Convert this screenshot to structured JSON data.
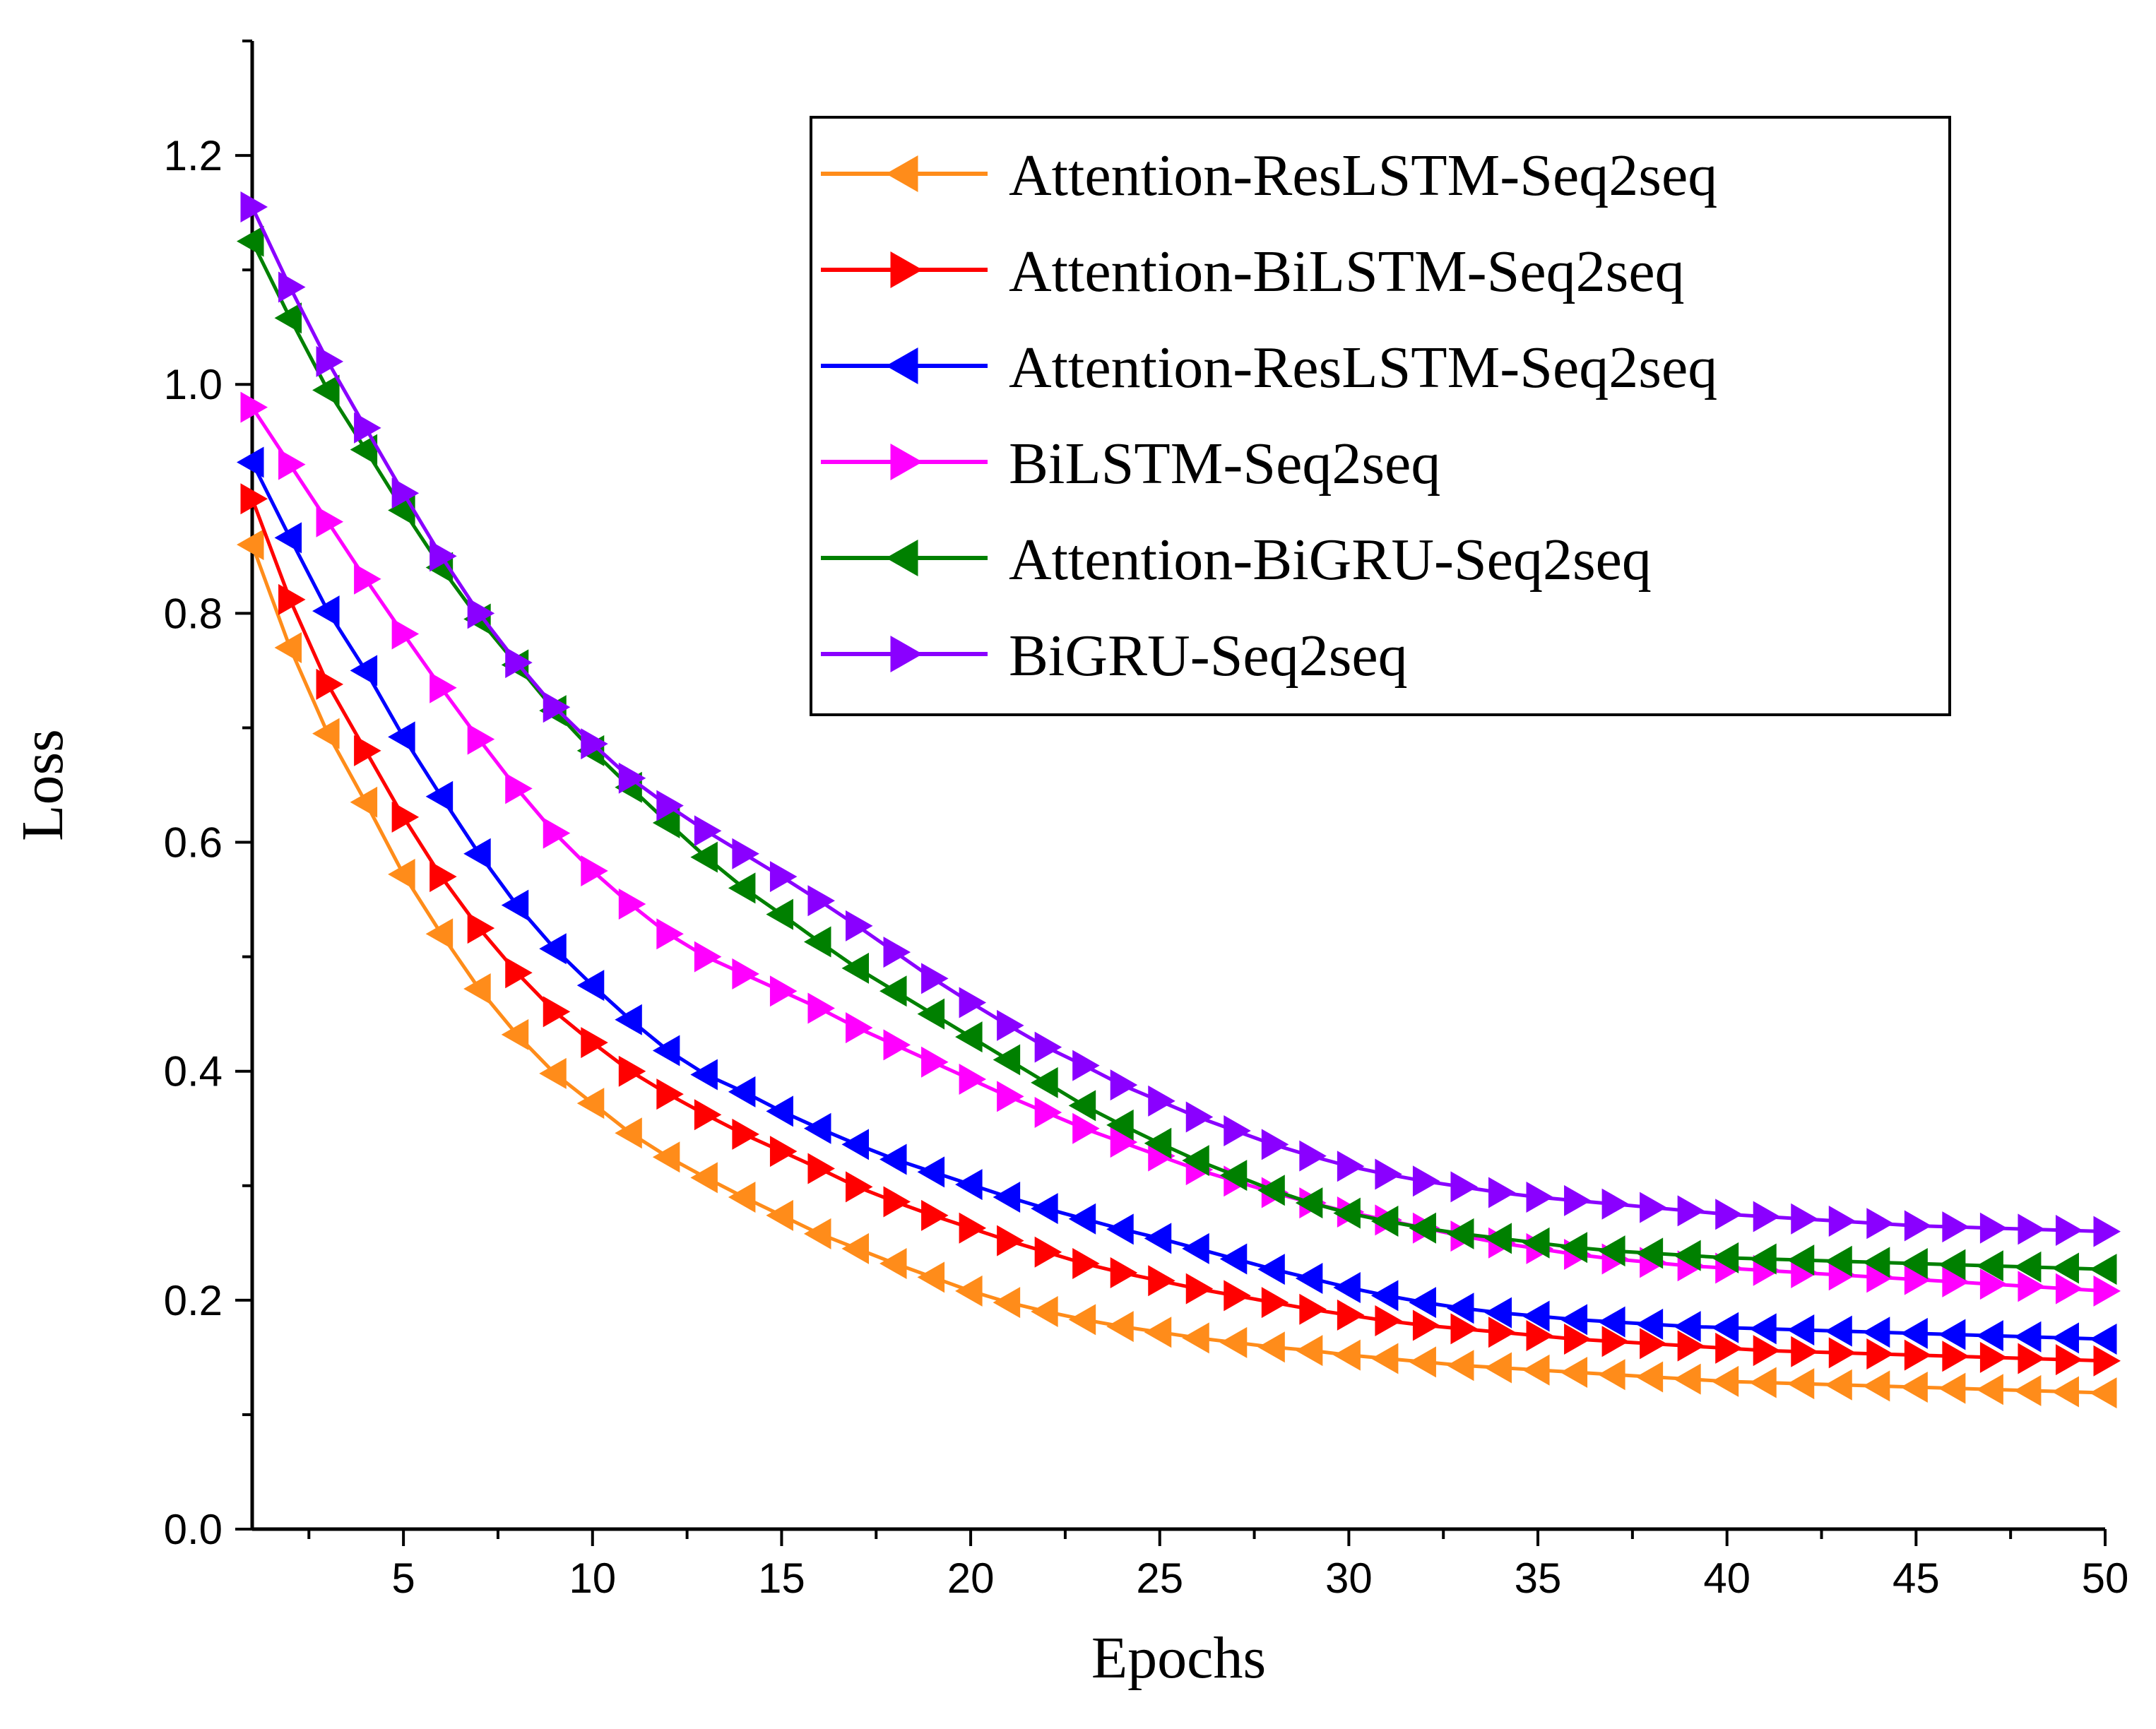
{
  "chart_data": {
    "type": "line",
    "title": "",
    "xlabel": "Epochs",
    "ylabel": "Loss",
    "xlim": [
      1,
      50
    ],
    "ylim": [
      0.0,
      1.3
    ],
    "xticks": [
      5,
      10,
      15,
      20,
      25,
      30,
      35,
      40,
      45,
      50
    ],
    "yticks": [
      0.0,
      0.2,
      0.4,
      0.6,
      0.8,
      1.0,
      1.2
    ],
    "grid": false,
    "legend_position": "top-right",
    "x": [
      1,
      2,
      3,
      4,
      5,
      6,
      7,
      8,
      9,
      10,
      11,
      12,
      13,
      14,
      15,
      16,
      17,
      18,
      19,
      20,
      21,
      22,
      23,
      24,
      25,
      26,
      27,
      28,
      29,
      30,
      31,
      32,
      33,
      34,
      35,
      36,
      37,
      38,
      39,
      40,
      41,
      42,
      43,
      44,
      45,
      46,
      47,
      48,
      49,
      50
    ],
    "series": [
      {
        "name": "Attention-ResLSTM-Seq2seq",
        "color": "#ff8c1a",
        "marker": "triangle-left",
        "values": [
          0.86,
          0.77,
          0.695,
          0.635,
          0.572,
          0.52,
          0.472,
          0.432,
          0.398,
          0.372,
          0.346,
          0.325,
          0.307,
          0.29,
          0.274,
          0.258,
          0.245,
          0.232,
          0.22,
          0.208,
          0.198,
          0.19,
          0.183,
          0.177,
          0.172,
          0.167,
          0.163,
          0.159,
          0.156,
          0.152,
          0.149,
          0.146,
          0.143,
          0.141,
          0.139,
          0.137,
          0.135,
          0.133,
          0.131,
          0.129,
          0.128,
          0.127,
          0.126,
          0.125,
          0.124,
          0.123,
          0.122,
          0.121,
          0.12,
          0.119
        ]
      },
      {
        "name": "Attention-BiLSTM-Seq2seq",
        "color": "#ff0000",
        "marker": "triangle-right",
        "values": [
          0.9,
          0.812,
          0.738,
          0.68,
          0.622,
          0.57,
          0.525,
          0.486,
          0.452,
          0.425,
          0.4,
          0.38,
          0.362,
          0.345,
          0.33,
          0.315,
          0.299,
          0.286,
          0.274,
          0.263,
          0.252,
          0.242,
          0.232,
          0.224,
          0.217,
          0.21,
          0.204,
          0.198,
          0.192,
          0.187,
          0.182,
          0.178,
          0.175,
          0.172,
          0.169,
          0.166,
          0.164,
          0.162,
          0.16,
          0.158,
          0.156,
          0.155,
          0.154,
          0.153,
          0.152,
          0.151,
          0.15,
          0.149,
          0.148,
          0.147
        ]
      },
      {
        "name": "Attention-ResLSTM-Seq2seq",
        "color": "#0000ff",
        "marker": "triangle-left",
        "values": [
          0.932,
          0.866,
          0.802,
          0.75,
          0.692,
          0.64,
          0.59,
          0.545,
          0.507,
          0.475,
          0.445,
          0.418,
          0.397,
          0.382,
          0.365,
          0.35,
          0.336,
          0.323,
          0.312,
          0.301,
          0.29,
          0.28,
          0.271,
          0.262,
          0.254,
          0.245,
          0.236,
          0.227,
          0.219,
          0.211,
          0.204,
          0.198,
          0.193,
          0.189,
          0.186,
          0.183,
          0.181,
          0.179,
          0.177,
          0.176,
          0.175,
          0.174,
          0.173,
          0.172,
          0.171,
          0.17,
          0.169,
          0.168,
          0.167,
          0.166
        ]
      },
      {
        "name": "BiLSTM-Seq2seq",
        "color": "#ff00ff",
        "marker": "triangle-right",
        "values": [
          0.98,
          0.93,
          0.88,
          0.83,
          0.782,
          0.735,
          0.69,
          0.647,
          0.608,
          0.575,
          0.546,
          0.52,
          0.5,
          0.485,
          0.47,
          0.455,
          0.438,
          0.423,
          0.408,
          0.393,
          0.378,
          0.364,
          0.35,
          0.338,
          0.326,
          0.314,
          0.304,
          0.294,
          0.285,
          0.277,
          0.27,
          0.263,
          0.256,
          0.25,
          0.245,
          0.24,
          0.236,
          0.233,
          0.23,
          0.228,
          0.226,
          0.224,
          0.222,
          0.22,
          0.218,
          0.216,
          0.214,
          0.212,
          0.21,
          0.208
        ]
      },
      {
        "name": "Attention-BiGRU-Seq2seq",
        "color": "#008000",
        "marker": "triangle-left",
        "values": [
          1.125,
          1.058,
          0.995,
          0.943,
          0.89,
          0.84,
          0.795,
          0.755,
          0.715,
          0.68,
          0.648,
          0.617,
          0.587,
          0.56,
          0.537,
          0.513,
          0.49,
          0.47,
          0.45,
          0.43,
          0.41,
          0.39,
          0.37,
          0.353,
          0.337,
          0.322,
          0.309,
          0.296,
          0.285,
          0.276,
          0.269,
          0.263,
          0.258,
          0.254,
          0.25,
          0.246,
          0.243,
          0.241,
          0.239,
          0.237,
          0.236,
          0.235,
          0.234,
          0.233,
          0.232,
          0.231,
          0.23,
          0.229,
          0.228,
          0.227
        ]
      },
      {
        "name": "BiGRU-Seq2seq",
        "color": "#8a00ff",
        "marker": "triangle-right",
        "values": [
          1.155,
          1.085,
          1.02,
          0.962,
          0.905,
          0.85,
          0.8,
          0.757,
          0.718,
          0.686,
          0.656,
          0.632,
          0.61,
          0.59,
          0.57,
          0.549,
          0.527,
          0.504,
          0.481,
          0.46,
          0.44,
          0.421,
          0.405,
          0.388,
          0.374,
          0.36,
          0.348,
          0.336,
          0.326,
          0.317,
          0.31,
          0.304,
          0.299,
          0.294,
          0.29,
          0.287,
          0.284,
          0.281,
          0.278,
          0.275,
          0.273,
          0.271,
          0.269,
          0.267,
          0.265,
          0.264,
          0.263,
          0.262,
          0.261,
          0.26
        ]
      }
    ]
  }
}
